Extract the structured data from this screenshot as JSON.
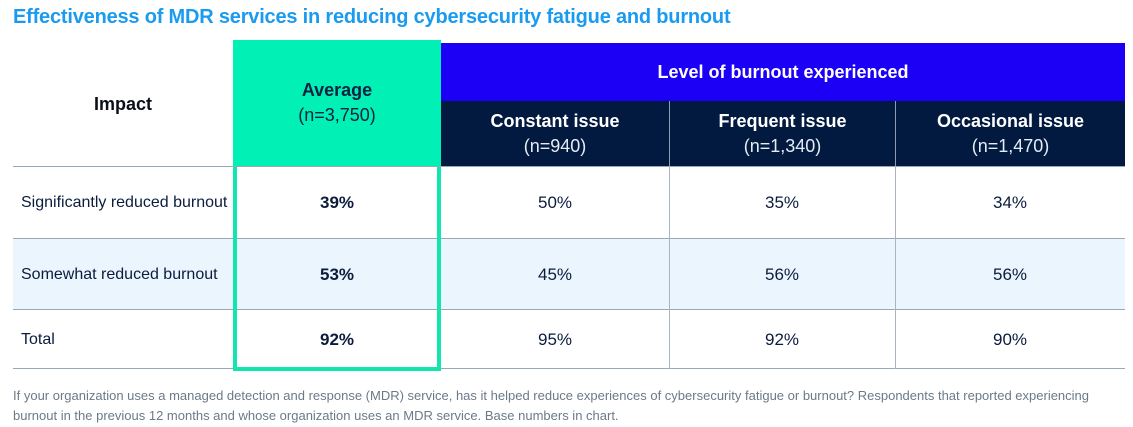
{
  "title": "Effectiveness of MDR services in reducing cybersecurity fatigue and burnout",
  "colors": {
    "title": "#1a9bf0",
    "average_highlight": "#00f0b5",
    "group_header": "#1c00f5",
    "sub_header": "#021a40",
    "alt_row": "#eaf5fd"
  },
  "chart_data": {
    "type": "table",
    "title": "Effectiveness of MDR services in reducing cybersecurity fatigue and burnout",
    "row_header_label": "Impact",
    "group_header": "Level of burnout experienced",
    "columns": [
      {
        "name": "Average",
        "base": "(n=3,750)",
        "highlighted": true
      },
      {
        "name": "Constant issue",
        "base": "(n=940)"
      },
      {
        "name": "Frequent issue",
        "base": "(n=1,340)"
      },
      {
        "name": "Occasional issue",
        "base": "(n=1,470)"
      }
    ],
    "rows": [
      {
        "label": "Significantly reduced burnout",
        "values": [
          "39%",
          "50%",
          "35%",
          "34%"
        ]
      },
      {
        "label": "Somewhat reduced burnout",
        "values": [
          "53%",
          "45%",
          "56%",
          "56%"
        ]
      },
      {
        "label": "Total",
        "values": [
          "92%",
          "95%",
          "92%",
          "90%"
        ]
      }
    ],
    "units": "percent of respondents"
  },
  "footnote": "If your organization uses a managed detection and response (MDR) service, has it helped reduce experiences of cybersecurity fatigue or burnout? Respondents that reported experiencing burnout in the previous 12 months and whose organization uses an MDR service. Base numbers in chart."
}
